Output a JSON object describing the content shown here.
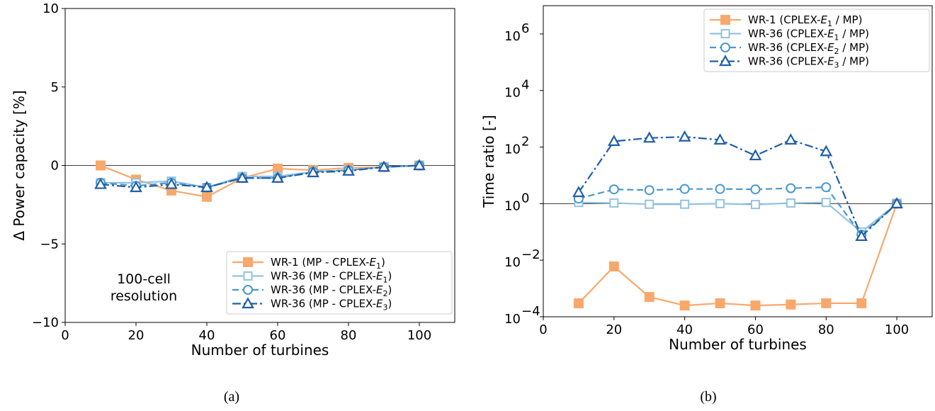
{
  "chart_data": [
    {
      "panel": "(a)",
      "type": "line",
      "xlabel": "Number of turbines",
      "ylabel": "Δ Power capacity [%]",
      "xlim": [
        0,
        110
      ],
      "ylim": [
        -10,
        10
      ],
      "xticks": [
        0,
        20,
        40,
        60,
        80,
        100
      ],
      "yticks": [
        -10,
        -5,
        0,
        5,
        10
      ],
      "xtick_labels": [
        "0",
        "20",
        "40",
        "60",
        "80",
        "100"
      ],
      "ytick_labels": [
        "−10",
        "−5",
        "0",
        "5",
        "10"
      ],
      "yscale": "linear",
      "reference_line": 0,
      "grid": false,
      "legend_position": "lower-right",
      "annotation": [
        "100-cell",
        "resolution"
      ],
      "series": [
        {
          "name": "WR-1 (MP - CPLEX-",
          "sub": "1",
          "suffix": ")",
          "color": "#f9a86c",
          "marker": "square-filled",
          "dash": "solid",
          "x": [
            10,
            20,
            30,
            40,
            50,
            60,
            70,
            80,
            90,
            100
          ],
          "y": [
            0.0,
            -0.9,
            -1.6,
            -2.0,
            -0.8,
            -0.2,
            -0.3,
            -0.15,
            -0.1,
            0.0
          ]
        },
        {
          "name": "WR-36 (MP - CPLEX-",
          "sub": "1",
          "suffix": ")",
          "color": "#93c3e0",
          "marker": "square-open",
          "dash": "solid",
          "x": [
            10,
            20,
            30,
            40,
            50,
            60,
            70,
            80,
            90,
            100
          ],
          "y": [
            -1.1,
            -1.1,
            -1.0,
            -1.4,
            -0.7,
            -0.7,
            -0.4,
            -0.3,
            -0.1,
            0.0
          ]
        },
        {
          "name": "WR-36 (MP - CPLEX-",
          "sub": "2",
          "suffix": ")",
          "color": "#4b97cc",
          "marker": "circle-open",
          "dash": "dashed",
          "x": [
            10,
            20,
            30,
            40,
            50,
            60,
            70,
            80,
            90,
            100
          ],
          "y": [
            -1.1,
            -1.3,
            -1.1,
            -1.4,
            -0.8,
            -0.8,
            -0.4,
            -0.3,
            -0.1,
            0.0
          ]
        },
        {
          "name": "WR-36 (MP - CPLEX-",
          "sub": "3",
          "suffix": ")",
          "color": "#1f5fa6",
          "marker": "triangle-open",
          "dash": "dashdot",
          "x": [
            10,
            20,
            30,
            40,
            50,
            60,
            70,
            80,
            90,
            100
          ],
          "y": [
            -1.2,
            -1.4,
            -1.2,
            -1.4,
            -0.8,
            -0.8,
            -0.45,
            -0.35,
            -0.1,
            0.0
          ]
        }
      ]
    },
    {
      "panel": "(b)",
      "type": "line",
      "xlabel": "Number of turbines",
      "ylabel": "Time ratio [-]",
      "xlim": [
        0,
        110
      ],
      "ylim_log10": [
        -4,
        7
      ],
      "xticks": [
        0,
        20,
        40,
        60,
        80,
        100
      ],
      "xtick_labels": [
        "0",
        "20",
        "40",
        "60",
        "80",
        "100"
      ],
      "yticks_exponent": [
        -4,
        -2,
        0,
        2,
        4,
        6
      ],
      "ytick_base": "10",
      "ytick_exponent_labels": [
        "−4",
        "−2",
        "0",
        "2",
        "4",
        "6"
      ],
      "yscale": "log",
      "reference_line": 1,
      "grid": false,
      "legend_position": "top-right",
      "series": [
        {
          "name": "WR-1 (CPLEX-",
          "sub": "1",
          "suffix": " / MP)",
          "color": "#f9a86c",
          "marker": "square-filled",
          "dash": "solid",
          "x": [
            10,
            20,
            30,
            40,
            50,
            60,
            70,
            80,
            90,
            100
          ],
          "y": [
            0.0003,
            0.006,
            0.0005,
            0.00025,
            0.0003,
            0.00025,
            0.00027,
            0.0003,
            0.0003,
            1.0
          ]
        },
        {
          "name": "WR-36 (CPLEX-",
          "sub": "1",
          "suffix": " / MP)",
          "color": "#93c3e0",
          "marker": "square-open",
          "dash": "solid",
          "x": [
            10,
            20,
            30,
            40,
            50,
            60,
            70,
            80,
            90,
            100
          ],
          "y": [
            1.1,
            1.05,
            0.95,
            0.95,
            1.0,
            0.93,
            1.05,
            1.1,
            0.1,
            1.0
          ]
        },
        {
          "name": "WR-36 (CPLEX-",
          "sub": "2",
          "suffix": " / MP)",
          "color": "#4b97cc",
          "marker": "circle-open",
          "dash": "dashed",
          "x": [
            10,
            20,
            30,
            40,
            50,
            60,
            70,
            80,
            90,
            100
          ],
          "y": [
            1.5,
            3.2,
            3.0,
            3.3,
            3.3,
            3.2,
            3.5,
            3.8,
            0.08,
            1.0
          ]
        },
        {
          "name": "WR-36 (CPLEX-",
          "sub": "3",
          "suffix": " / MP)",
          "color": "#1f5fa6",
          "marker": "triangle-open",
          "dash": "dashdot",
          "x": [
            10,
            20,
            30,
            40,
            50,
            60,
            70,
            80,
            90,
            100
          ],
          "y": [
            2.5,
            160,
            210,
            230,
            180,
            50,
            180,
            70,
            0.07,
            1.0
          ]
        }
      ]
    }
  ],
  "captions": {
    "a": "(a)",
    "b": "(b)"
  }
}
